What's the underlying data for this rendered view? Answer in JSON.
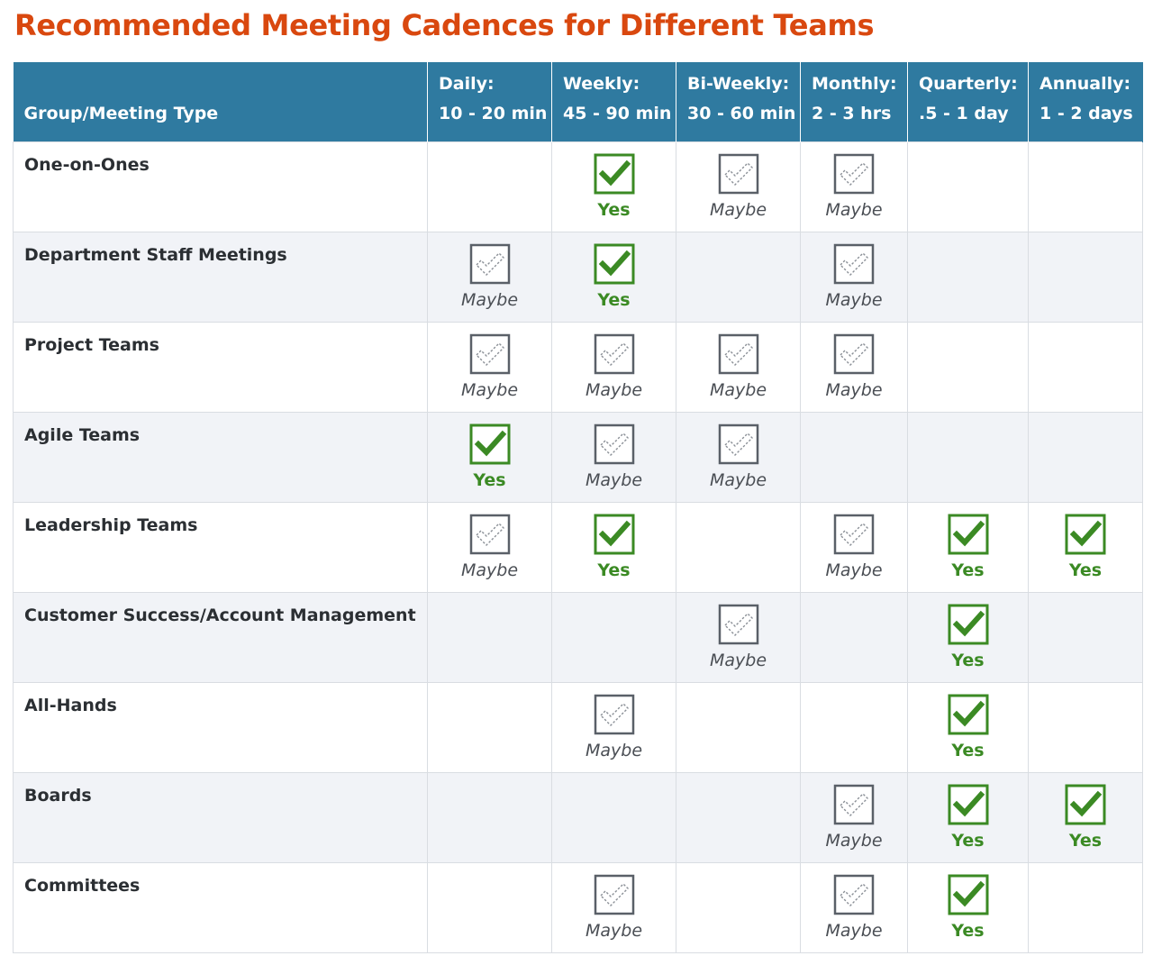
{
  "title": "Recommended Meeting Cadences for Different Teams",
  "colors": {
    "title": "#d9480f",
    "header_bg": "#2f7aa0",
    "yes": "#3b8a24",
    "maybe": "#4a4e54",
    "alt_row": "#f1f3f7"
  },
  "labels": {
    "yes": "Yes",
    "maybe": "Maybe"
  },
  "icons": {
    "yes": "checked-box-icon",
    "maybe": "dashed-check-box-icon"
  },
  "columns": [
    {
      "line1": "",
      "line2": "Group/Meeting Type"
    },
    {
      "line1": "Daily:",
      "line2": "10 - 20 min"
    },
    {
      "line1": "Weekly:",
      "line2": "45 - 90 min"
    },
    {
      "line1": "Bi-Weekly:",
      "line2": "30 - 60 min"
    },
    {
      "line1": "Monthly:",
      "line2": "2 - 3 hrs"
    },
    {
      "line1": "Quarterly:",
      "line2": ".5 - 1 day"
    },
    {
      "line1": "Annually:",
      "line2": "1 - 2 days"
    }
  ],
  "rows": [
    {
      "group": "One-on-Ones",
      "cells": [
        "",
        "yes",
        "maybe",
        "maybe",
        "",
        ""
      ]
    },
    {
      "group": "Department Staff Meetings",
      "cells": [
        "maybe",
        "yes",
        "",
        "maybe",
        "",
        ""
      ]
    },
    {
      "group": "Project Teams",
      "cells": [
        "maybe",
        "maybe",
        "maybe",
        "maybe",
        "",
        ""
      ]
    },
    {
      "group": "Agile Teams",
      "cells": [
        "yes",
        "maybe",
        "maybe",
        "",
        "",
        ""
      ]
    },
    {
      "group": "Leadership Teams",
      "cells": [
        "maybe",
        "yes",
        "",
        "maybe",
        "yes",
        "yes"
      ]
    },
    {
      "group": "Customer Success/Account Management",
      "cells": [
        "",
        "",
        "maybe",
        "",
        "yes",
        ""
      ]
    },
    {
      "group": "All-Hands",
      "cells": [
        "",
        "maybe",
        "",
        "",
        "yes",
        ""
      ]
    },
    {
      "group": "Boards",
      "cells": [
        "",
        "",
        "",
        "maybe",
        "yes",
        "yes"
      ]
    },
    {
      "group": "Committees",
      "cells": [
        "",
        "maybe",
        "",
        "maybe",
        "yes",
        ""
      ]
    }
  ]
}
